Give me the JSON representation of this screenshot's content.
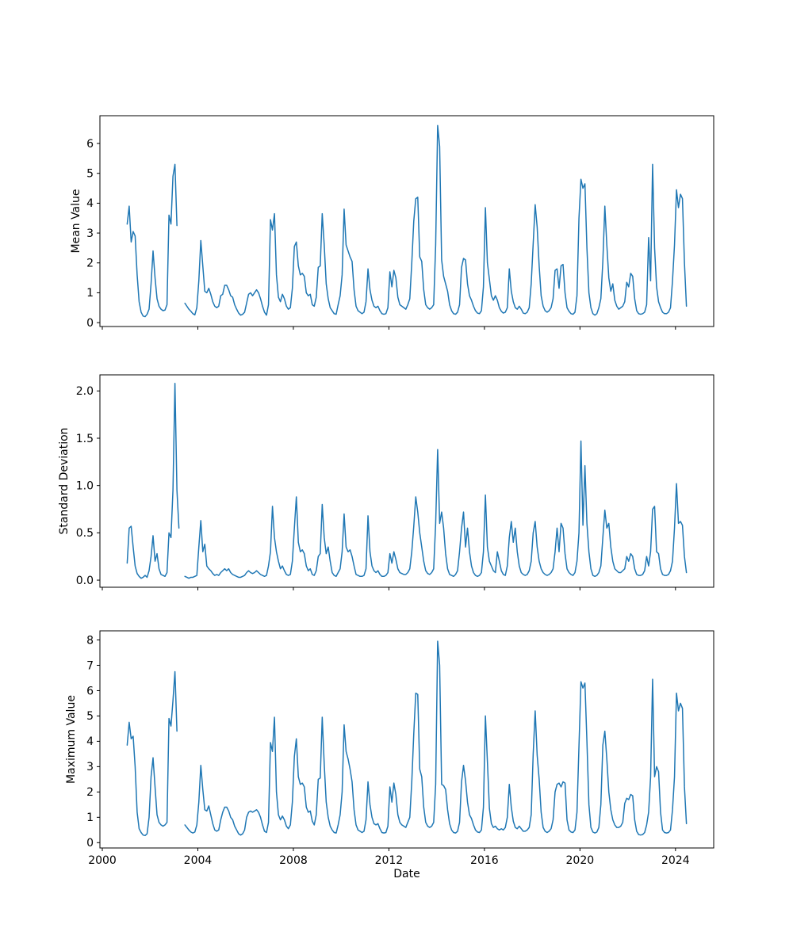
{
  "figure": {
    "background": "#ffffff",
    "line_color": "#1f77b4",
    "axis_color": "#000000",
    "text_color": "#000000"
  },
  "x_axis": {
    "label": "Date",
    "xlim": [
      1999.9,
      2025.6
    ],
    "tick_values": [
      2000,
      2004,
      2008,
      2012,
      2016,
      2020,
      2024
    ],
    "tick_labels": [
      "2000",
      "2004",
      "2008",
      "2012",
      "2016",
      "2020",
      "2024"
    ]
  },
  "chart_data": [
    {
      "type": "line",
      "title": "",
      "xlabel": "Date",
      "ylabel": "Mean Value",
      "legend": null,
      "grid": false,
      "ylim": [
        -0.13,
        6.93
      ],
      "ytick_values": [
        0,
        1,
        2,
        3,
        4,
        5,
        6
      ],
      "ytick_labels": [
        "0",
        "1",
        "2",
        "3",
        "4",
        "5",
        "6"
      ],
      "x_start_year": 2001,
      "x_start_month": 1,
      "x_frequency": "monthly",
      "values": [
        3.3,
        3.9,
        2.7,
        3.05,
        2.9,
        1.6,
        0.7,
        0.35,
        0.22,
        0.2,
        0.28,
        0.45,
        1.3,
        2.4,
        1.5,
        0.8,
        0.55,
        0.45,
        0.4,
        0.42,
        0.6,
        3.6,
        3.3,
        4.9,
        5.3,
        3.25,
        null,
        null,
        null,
        0.65,
        0.55,
        0.45,
        0.38,
        0.3,
        0.26,
        0.5,
        1.4,
        2.75,
        1.9,
        1.05,
        1.0,
        1.15,
        0.95,
        0.7,
        0.55,
        0.5,
        0.55,
        0.9,
        0.95,
        1.25,
        1.25,
        1.1,
        0.9,
        0.85,
        0.6,
        0.45,
        0.32,
        0.25,
        0.28,
        0.35,
        0.65,
        0.95,
        1.0,
        0.9,
        1.0,
        1.1,
        1.0,
        0.8,
        0.55,
        0.35,
        0.25,
        0.6,
        3.45,
        3.1,
        3.65,
        1.6,
        0.85,
        0.7,
        0.95,
        0.8,
        0.55,
        0.45,
        0.5,
        1.15,
        2.55,
        2.7,
        1.9,
        1.6,
        1.65,
        1.55,
        1.0,
        0.9,
        0.95,
        0.6,
        0.55,
        0.85,
        1.85,
        1.9,
        3.65,
        2.6,
        1.3,
        0.8,
        0.5,
        0.4,
        0.3,
        0.28,
        0.6,
        0.9,
        1.6,
        3.8,
        2.6,
        2.4,
        2.2,
        2.05,
        1.1,
        0.55,
        0.4,
        0.35,
        0.3,
        0.35,
        0.7,
        1.8,
        1.1,
        0.75,
        0.55,
        0.5,
        0.55,
        0.4,
        0.3,
        0.28,
        0.3,
        0.5,
        1.7,
        1.2,
        1.75,
        1.5,
        0.85,
        0.6,
        0.55,
        0.5,
        0.45,
        0.6,
        0.8,
        2.0,
        3.4,
        4.15,
        4.2,
        2.2,
        2.05,
        1.1,
        0.6,
        0.5,
        0.45,
        0.5,
        0.6,
        2.6,
        6.6,
        5.9,
        2.1,
        1.55,
        1.3,
        1.05,
        0.6,
        0.4,
        0.3,
        0.28,
        0.35,
        0.6,
        1.85,
        2.15,
        2.1,
        1.3,
        0.9,
        0.75,
        0.55,
        0.4,
        0.32,
        0.3,
        0.4,
        1.2,
        3.85,
        2.0,
        1.45,
        0.9,
        0.75,
        0.9,
        0.75,
        0.5,
        0.38,
        0.32,
        0.35,
        0.5,
        1.8,
        1.05,
        0.7,
        0.5,
        0.45,
        0.55,
        0.45,
        0.32,
        0.3,
        0.35,
        0.5,
        1.3,
        2.65,
        3.95,
        3.2,
        1.9,
        0.9,
        0.55,
        0.4,
        0.35,
        0.4,
        0.5,
        0.8,
        1.75,
        1.8,
        1.15,
        1.9,
        1.95,
        1.0,
        0.5,
        0.38,
        0.3,
        0.28,
        0.35,
        0.9,
        3.5,
        4.8,
        4.5,
        4.65,
        2.5,
        1.0,
        0.5,
        0.3,
        0.25,
        0.3,
        0.5,
        0.8,
        2.05,
        3.9,
        2.6,
        1.5,
        1.05,
        1.3,
        0.75,
        0.55,
        0.45,
        0.5,
        0.55,
        0.7,
        1.35,
        1.2,
        1.65,
        1.55,
        0.8,
        0.4,
        0.3,
        0.28,
        0.3,
        0.35,
        0.6,
        2.85,
        1.4,
        5.3,
        2.5,
        1.2,
        0.7,
        0.5,
        0.35,
        0.3,
        0.3,
        0.35,
        0.5,
        1.4,
        2.6,
        4.45,
        3.85,
        4.3,
        4.15,
        2.0,
        0.55
      ]
    },
    {
      "type": "line",
      "title": "",
      "xlabel": "Date",
      "ylabel": "Standard Deviation",
      "legend": null,
      "grid": false,
      "ylim": [
        -0.075,
        2.17
      ],
      "ytick_values": [
        0.0,
        0.5,
        1.0,
        1.5,
        2.0
      ],
      "ytick_labels": [
        "0.0",
        "0.5",
        "1.0",
        "1.5",
        "2.0"
      ],
      "x_start_year": 2001,
      "x_start_month": 1,
      "x_frequency": "monthly",
      "values": [
        0.18,
        0.55,
        0.57,
        0.35,
        0.15,
        0.07,
        0.04,
        0.02,
        0.03,
        0.05,
        0.03,
        0.1,
        0.25,
        0.47,
        0.2,
        0.28,
        0.12,
        0.06,
        0.05,
        0.04,
        0.08,
        0.5,
        0.45,
        0.95,
        2.08,
        0.95,
        0.55,
        null,
        null,
        0.04,
        0.03,
        0.02,
        0.03,
        0.03,
        0.04,
        0.05,
        0.35,
        0.63,
        0.3,
        0.38,
        0.15,
        0.12,
        0.1,
        0.07,
        0.05,
        0.06,
        0.05,
        0.08,
        0.1,
        0.12,
        0.1,
        0.12,
        0.08,
        0.06,
        0.05,
        0.04,
        0.03,
        0.03,
        0.04,
        0.05,
        0.08,
        0.1,
        0.08,
        0.07,
        0.08,
        0.1,
        0.08,
        0.06,
        0.05,
        0.04,
        0.05,
        0.15,
        0.3,
        0.78,
        0.45,
        0.3,
        0.2,
        0.12,
        0.15,
        0.1,
        0.06,
        0.05,
        0.06,
        0.2,
        0.55,
        0.88,
        0.4,
        0.3,
        0.32,
        0.28,
        0.15,
        0.1,
        0.12,
        0.06,
        0.05,
        0.1,
        0.25,
        0.28,
        0.8,
        0.45,
        0.28,
        0.35,
        0.2,
        0.08,
        0.05,
        0.04,
        0.08,
        0.12,
        0.3,
        0.7,
        0.35,
        0.3,
        0.32,
        0.25,
        0.15,
        0.06,
        0.05,
        0.04,
        0.04,
        0.05,
        0.12,
        0.68,
        0.3,
        0.15,
        0.1,
        0.08,
        0.1,
        0.06,
        0.04,
        0.04,
        0.05,
        0.08,
        0.28,
        0.18,
        0.3,
        0.22,
        0.12,
        0.08,
        0.07,
        0.06,
        0.06,
        0.08,
        0.12,
        0.3,
        0.57,
        0.88,
        0.72,
        0.5,
        0.35,
        0.2,
        0.1,
        0.07,
        0.06,
        0.08,
        0.12,
        0.6,
        1.38,
        0.6,
        0.72,
        0.55,
        0.28,
        0.12,
        0.06,
        0.05,
        0.04,
        0.06,
        0.1,
        0.3,
        0.55,
        0.72,
        0.35,
        0.55,
        0.3,
        0.15,
        0.08,
        0.05,
        0.04,
        0.05,
        0.08,
        0.3,
        0.9,
        0.35,
        0.2,
        0.15,
        0.1,
        0.08,
        0.3,
        0.2,
        0.1,
        0.06,
        0.05,
        0.15,
        0.45,
        0.62,
        0.4,
        0.55,
        0.3,
        0.15,
        0.08,
        0.06,
        0.05,
        0.06,
        0.1,
        0.2,
        0.5,
        0.62,
        0.35,
        0.2,
        0.12,
        0.08,
        0.06,
        0.05,
        0.06,
        0.08,
        0.12,
        0.3,
        0.55,
        0.3,
        0.6,
        0.55,
        0.28,
        0.12,
        0.08,
        0.06,
        0.05,
        0.08,
        0.2,
        0.5,
        1.47,
        0.58,
        1.21,
        0.6,
        0.3,
        0.12,
        0.05,
        0.04,
        0.05,
        0.08,
        0.15,
        0.45,
        0.74,
        0.55,
        0.6,
        0.35,
        0.2,
        0.12,
        0.1,
        0.08,
        0.08,
        0.1,
        0.12,
        0.25,
        0.2,
        0.28,
        0.25,
        0.12,
        0.06,
        0.05,
        0.05,
        0.06,
        0.1,
        0.25,
        0.15,
        0.3,
        0.75,
        0.78,
        0.3,
        0.28,
        0.12,
        0.06,
        0.05,
        0.05,
        0.06,
        0.1,
        0.2,
        0.55,
        1.02,
        0.6,
        0.62,
        0.58,
        0.25,
        0.08
      ]
    },
    {
      "type": "line",
      "title": "",
      "xlabel": "Date",
      "ylabel": "Maximum Value",
      "legend": null,
      "grid": false,
      "ylim": [
        -0.21,
        8.36
      ],
      "ytick_values": [
        0,
        1,
        2,
        3,
        4,
        5,
        6,
        7,
        8
      ],
      "ytick_labels": [
        "0",
        "1",
        "2",
        "3",
        "4",
        "5",
        "6",
        "7",
        "8"
      ],
      "x_start_year": 2001,
      "x_start_month": 1,
      "x_frequency": "monthly",
      "values": [
        3.85,
        4.75,
        4.1,
        4.2,
        3.0,
        1.2,
        0.55,
        0.4,
        0.3,
        0.28,
        0.35,
        1.0,
        2.6,
        3.35,
        2.2,
        1.1,
        0.8,
        0.7,
        0.65,
        0.7,
        0.8,
        4.9,
        4.6,
        5.6,
        6.75,
        4.4,
        null,
        null,
        null,
        0.7,
        0.6,
        0.5,
        0.42,
        0.38,
        0.42,
        0.7,
        1.6,
        3.05,
        2.1,
        1.3,
        1.25,
        1.45,
        1.1,
        0.75,
        0.5,
        0.45,
        0.5,
        0.9,
        1.2,
        1.4,
        1.4,
        1.25,
        1.0,
        0.9,
        0.65,
        0.5,
        0.35,
        0.3,
        0.35,
        0.5,
        1.0,
        1.2,
        1.25,
        1.2,
        1.25,
        1.3,
        1.2,
        1.0,
        0.7,
        0.45,
        0.4,
        0.8,
        3.95,
        3.6,
        4.95,
        2.0,
        1.1,
        0.9,
        1.05,
        0.9,
        0.65,
        0.55,
        0.7,
        1.6,
        3.4,
        4.1,
        2.6,
        2.3,
        2.35,
        2.2,
        1.4,
        1.2,
        1.25,
        0.85,
        0.7,
        1.1,
        2.5,
        2.55,
        4.95,
        3.1,
        1.6,
        1.0,
        0.65,
        0.5,
        0.4,
        0.38,
        0.7,
        1.1,
        2.0,
        4.65,
        3.6,
        3.3,
        2.9,
        2.4,
        1.3,
        0.7,
        0.5,
        0.45,
        0.4,
        0.45,
        0.9,
        2.4,
        1.5,
        1.0,
        0.75,
        0.7,
        0.75,
        0.55,
        0.4,
        0.38,
        0.4,
        0.65,
        2.2,
        1.6,
        2.35,
        1.9,
        1.1,
        0.8,
        0.7,
        0.65,
        0.6,
        0.8,
        1.0,
        2.4,
        4.3,
        5.9,
        5.85,
        2.9,
        2.6,
        1.4,
        0.8,
        0.65,
        0.6,
        0.65,
        0.8,
        2.3,
        7.95,
        7.0,
        2.3,
        2.25,
        2.1,
        1.3,
        0.75,
        0.5,
        0.4,
        0.38,
        0.45,
        0.8,
        2.4,
        3.05,
        2.45,
        1.6,
        1.1,
        0.95,
        0.7,
        0.5,
        0.42,
        0.4,
        0.5,
        1.4,
        5.0,
        3.2,
        1.35,
        0.75,
        0.6,
        0.65,
        0.55,
        0.5,
        0.55,
        0.5,
        0.6,
        1.0,
        2.3,
        1.4,
        0.85,
        0.6,
        0.55,
        0.65,
        0.55,
        0.45,
        0.45,
        0.5,
        0.6,
        1.1,
        3.5,
        5.2,
        3.45,
        2.5,
        1.2,
        0.6,
        0.45,
        0.4,
        0.45,
        0.55,
        0.9,
        2.0,
        2.3,
        2.35,
        2.2,
        2.4,
        2.35,
        0.9,
        0.5,
        0.42,
        0.4,
        0.5,
        1.2,
        3.8,
        6.35,
        6.1,
        6.3,
        4.0,
        1.5,
        0.6,
        0.42,
        0.38,
        0.42,
        0.6,
        1.5,
        3.85,
        4.4,
        3.3,
        2.0,
        1.3,
        0.9,
        0.7,
        0.6,
        0.6,
        0.65,
        0.8,
        1.55,
        1.75,
        1.7,
        1.9,
        1.85,
        0.9,
        0.45,
        0.32,
        0.3,
        0.32,
        0.4,
        0.7,
        1.2,
        2.6,
        6.45,
        2.6,
        3.0,
        2.8,
        1.2,
        0.5,
        0.4,
        0.38,
        0.4,
        0.5,
        1.3,
        2.6,
        5.9,
        5.2,
        5.5,
        5.3,
        2.2,
        0.75
      ]
    }
  ]
}
